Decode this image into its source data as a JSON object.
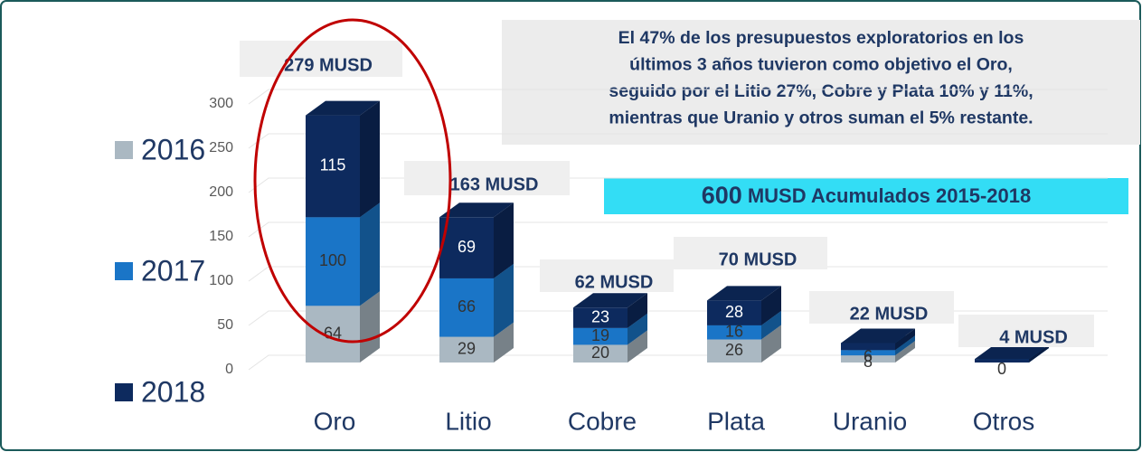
{
  "chart_data": {
    "type": "bar",
    "stacked": true,
    "categories": [
      "Oro",
      "Litio",
      "Cobre",
      "Plata",
      "Uranio",
      "Otros"
    ],
    "series": [
      {
        "name": "2016",
        "color": "#aab8c2",
        "values": [
          64,
          29,
          20,
          26,
          8,
          0
        ],
        "value_labels": [
          "64",
          "29",
          "20",
          "26",
          "8",
          "0"
        ]
      },
      {
        "name": "2017",
        "color": "#1a75c7",
        "values": [
          100,
          66,
          19,
          16,
          6,
          0
        ],
        "value_labels": [
          "100",
          "66",
          "19",
          "16",
          "6",
          null
        ]
      },
      {
        "name": "2018",
        "color": "#0d2a5e",
        "values": [
          115,
          69,
          23,
          28,
          8,
          4
        ],
        "value_labels": [
          "115",
          "69",
          "23",
          "28",
          null,
          null
        ]
      }
    ],
    "total_labels": [
      "279  MUSD",
      "163 MUSD",
      "62 MUSD",
      "70 MUSD",
      "22 MUSD",
      "4 MUSD"
    ],
    "ylim": [
      0,
      300
    ],
    "yticks": [
      0,
      50,
      100,
      150,
      200,
      250,
      300
    ],
    "grid": true,
    "legend": "left",
    "annotation": [
      "El 47% de los presupuestos exploratorios en los",
      "últimos 3 años tuvieron como objetivo el Oro,",
      "seguido por el Litio 27%, Cobre y Plata 10% y 11%,",
      "mientras que  Uranio y otros suman el 5% restante."
    ],
    "banner": {
      "number": "600",
      "text": "MUSD Acumulados 2015-2018"
    }
  }
}
